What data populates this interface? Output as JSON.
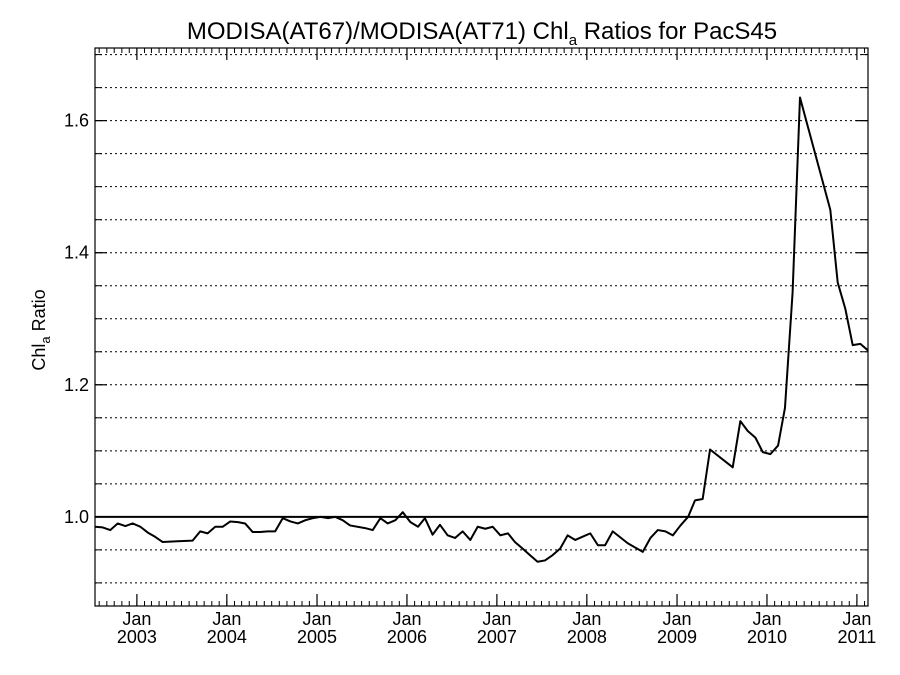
{
  "chart_data": {
    "type": "line",
    "title": "MODISA(AT67)/MODISA(AT71)  Chl",
    "title_subscript": "a",
    "title_suffix": " Ratios for PacS45",
    "ylabel": "Chl",
    "ylabel_subscript": "a",
    "ylabel_suffix": " Ratio",
    "xlabel": "",
    "ylim": [
      0.865,
      1.71
    ],
    "xlim": [
      "2002-07-15",
      "2011-02-15"
    ],
    "grid": true,
    "grid_style": "dotted",
    "reference_line": 1.0,
    "yticks": [
      1.0,
      1.2,
      1.4,
      1.6
    ],
    "ytick_labels": [
      "1.0",
      "1.2",
      "1.4",
      "1.6"
    ],
    "xticks": [
      {
        "date": "2003-01-01",
        "month": "Jan",
        "year": "2003"
      },
      {
        "date": "2004-01-01",
        "month": "Jan",
        "year": "2004"
      },
      {
        "date": "2005-01-01",
        "month": "Jan",
        "year": "2005"
      },
      {
        "date": "2006-01-01",
        "month": "Jan",
        "year": "2006"
      },
      {
        "date": "2007-01-01",
        "month": "Jan",
        "year": "2007"
      },
      {
        "date": "2008-01-01",
        "month": "Jan",
        "year": "2008"
      },
      {
        "date": "2009-01-01",
        "month": "Jan",
        "year": "2009"
      },
      {
        "date": "2010-01-01",
        "month": "Jan",
        "year": "2010"
      },
      {
        "date": "2011-01-01",
        "month": "Jan",
        "year": "2011"
      }
    ],
    "series": [
      {
        "color": "#000000",
        "points": [
          [
            "2002-07-15",
            0.985
          ],
          [
            "2002-08-15",
            0.984
          ],
          [
            "2002-09-15",
            0.98
          ],
          [
            "2002-10-15",
            0.99
          ],
          [
            "2002-11-15",
            0.986
          ],
          [
            "2002-12-15",
            0.99
          ],
          [
            "2003-01-15",
            0.985
          ],
          [
            "2003-02-15",
            0.976
          ],
          [
            "2003-03-15",
            0.97
          ],
          [
            "2003-04-15",
            0.962
          ],
          [
            "2003-06-15",
            0.963
          ],
          [
            "2003-08-15",
            0.964
          ],
          [
            "2003-09-15",
            0.978
          ],
          [
            "2003-10-15",
            0.975
          ],
          [
            "2003-11-15",
            0.985
          ],
          [
            "2003-12-15",
            0.985
          ],
          [
            "2004-01-15",
            0.993
          ],
          [
            "2004-02-15",
            0.992
          ],
          [
            "2004-03-15",
            0.99
          ],
          [
            "2004-04-15",
            0.977
          ],
          [
            "2004-05-15",
            0.977
          ],
          [
            "2004-06-15",
            0.978
          ],
          [
            "2004-07-15",
            0.978
          ],
          [
            "2004-08-15",
            0.998
          ],
          [
            "2004-09-15",
            0.993
          ],
          [
            "2004-10-15",
            0.99
          ],
          [
            "2004-11-15",
            0.995
          ],
          [
            "2004-12-15",
            0.998
          ],
          [
            "2005-01-15",
            1.0
          ],
          [
            "2005-02-15",
            0.998
          ],
          [
            "2005-03-15",
            1.0
          ],
          [
            "2005-04-15",
            0.995
          ],
          [
            "2005-05-15",
            0.987
          ],
          [
            "2005-07-15",
            0.983
          ],
          [
            "2005-08-15",
            0.98
          ],
          [
            "2005-09-15",
            0.998
          ],
          [
            "2005-10-15",
            0.99
          ],
          [
            "2005-11-15",
            0.995
          ],
          [
            "2005-12-15",
            1.007
          ],
          [
            "2006-01-15",
            0.992
          ],
          [
            "2006-02-15",
            0.985
          ],
          [
            "2006-03-15",
            0.998
          ],
          [
            "2006-04-15",
            0.973
          ],
          [
            "2006-05-15",
            0.988
          ],
          [
            "2006-06-15",
            0.972
          ],
          [
            "2006-07-15",
            0.968
          ],
          [
            "2006-08-15",
            0.978
          ],
          [
            "2006-09-15",
            0.965
          ],
          [
            "2006-10-15",
            0.985
          ],
          [
            "2006-11-15",
            0.982
          ],
          [
            "2006-12-15",
            0.985
          ],
          [
            "2007-01-15",
            0.972
          ],
          [
            "2007-02-15",
            0.975
          ],
          [
            "2007-03-15",
            0.962
          ],
          [
            "2007-04-15",
            0.952
          ],
          [
            "2007-05-15",
            0.942
          ],
          [
            "2007-06-15",
            0.932
          ],
          [
            "2007-07-15",
            0.934
          ],
          [
            "2007-08-15",
            0.942
          ],
          [
            "2007-09-15",
            0.952
          ],
          [
            "2007-10-15",
            0.972
          ],
          [
            "2007-11-15",
            0.965
          ],
          [
            "2007-12-15",
            0.97
          ],
          [
            "2008-01-15",
            0.975
          ],
          [
            "2008-02-15",
            0.957
          ],
          [
            "2008-03-15",
            0.957
          ],
          [
            "2008-04-15",
            0.978
          ],
          [
            "2008-06-15",
            0.96
          ],
          [
            "2008-08-15",
            0.947
          ],
          [
            "2008-09-15",
            0.968
          ],
          [
            "2008-10-15",
            0.98
          ],
          [
            "2008-11-15",
            0.978
          ],
          [
            "2008-12-15",
            0.972
          ],
          [
            "2009-01-15",
            0.987
          ],
          [
            "2009-02-15",
            1.0
          ],
          [
            "2009-03-15",
            1.025
          ],
          [
            "2009-04-15",
            1.027
          ],
          [
            "2009-05-15",
            1.102
          ],
          [
            "2009-08-15",
            1.075
          ],
          [
            "2009-09-15",
            1.145
          ],
          [
            "2009-10-15",
            1.13
          ],
          [
            "2009-11-15",
            1.12
          ],
          [
            "2009-12-15",
            1.098
          ],
          [
            "2010-01-15",
            1.095
          ],
          [
            "2010-02-15",
            1.108
          ],
          [
            "2010-03-15",
            1.165
          ],
          [
            "2010-04-15",
            1.34
          ],
          [
            "2010-05-15",
            1.635
          ],
          [
            "2010-09-15",
            1.465
          ],
          [
            "2010-10-15",
            1.355
          ],
          [
            "2010-11-15",
            1.315
          ],
          [
            "2010-12-15",
            1.26
          ],
          [
            "2011-01-15",
            1.262
          ],
          [
            "2011-02-15",
            1.252
          ]
        ]
      }
    ]
  }
}
